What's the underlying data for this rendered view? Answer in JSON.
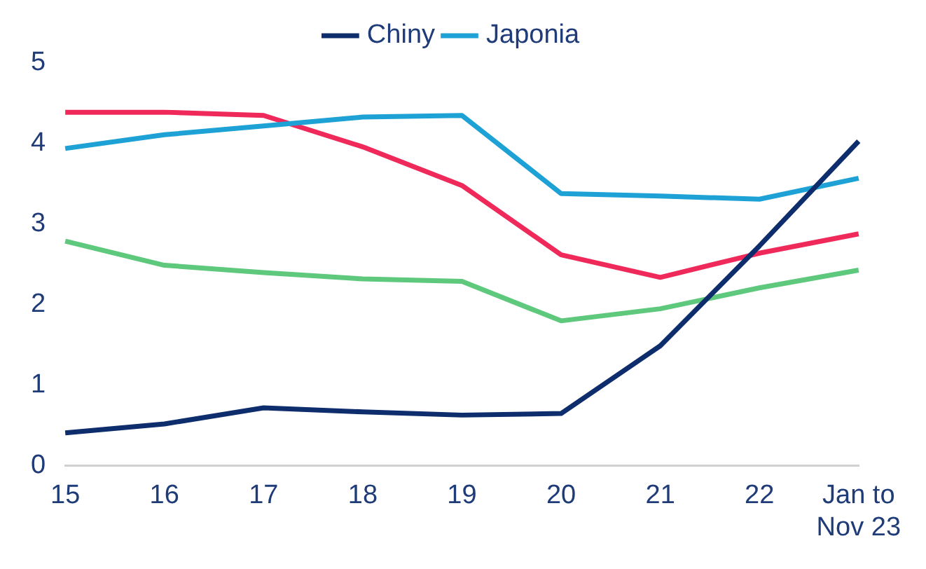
{
  "chart_data": {
    "type": "line",
    "categories": [
      "15",
      "16",
      "17",
      "18",
      "19",
      "20",
      "21",
      "22",
      "Jan to Nov 23"
    ],
    "series": [
      {
        "name": "Chiny",
        "color": "#0d2d6c",
        "values": [
          0.41,
          0.52,
          0.72,
          0.67,
          0.63,
          0.65,
          1.49,
          2.73,
          4.03
        ]
      },
      {
        "name": "Japonia",
        "color": "#1ea2d6",
        "values": [
          3.94,
          4.11,
          4.22,
          4.33,
          4.35,
          3.38,
          3.35,
          3.31,
          3.57
        ]
      },
      {
        "color": "#ef2a5b",
        "values": [
          4.39,
          4.39,
          4.35,
          3.96,
          3.48,
          2.62,
          2.34,
          2.64,
          2.88
        ]
      },
      {
        "color": "#5ec97c",
        "values": [
          2.79,
          2.49,
          2.4,
          2.32,
          2.29,
          1.8,
          1.95,
          2.21,
          2.43
        ]
      }
    ],
    "ylim": [
      0,
      5
    ],
    "yticks": [
      0,
      1,
      2,
      3,
      4,
      5
    ],
    "grid": false,
    "legend": "top",
    "marker": "none",
    "line_style": "solid"
  }
}
